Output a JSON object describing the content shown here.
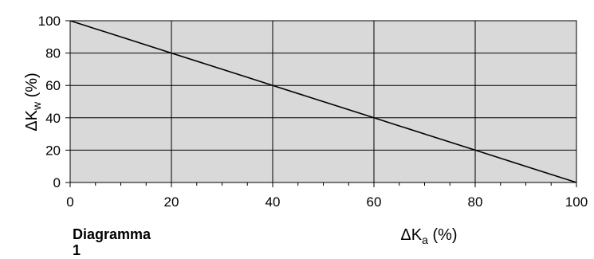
{
  "caption": {
    "line1": "Diagramma",
    "line2": "1"
  },
  "chart_data": {
    "type": "line",
    "x": [
      0,
      10,
      20,
      30,
      35,
      40,
      50,
      60,
      65,
      70,
      80,
      90,
      100
    ],
    "series": [
      {
        "values": [
          100,
          90,
          80,
          70,
          65,
          60,
          50,
          40,
          35,
          30,
          20,
          10,
          0
        ]
      }
    ],
    "xlim": [
      0,
      100
    ],
    "ylim": [
      0,
      100
    ],
    "x_major_ticks": [
      0,
      20,
      40,
      60,
      80,
      100
    ],
    "y_major_ticks": [
      0,
      20,
      40,
      60,
      80,
      100
    ],
    "x_tick_labels": [
      "0",
      "20",
      "40",
      "60",
      "80",
      "100"
    ],
    "y_tick_labels": [
      "0",
      "20",
      "40",
      "60",
      "80",
      "100"
    ],
    "xlabel": {
      "symbol": "ΔK",
      "subscript": "a",
      "unit": " (%)"
    },
    "ylabel": {
      "symbol": "ΔK",
      "subscript": "w",
      "unit": "  (%)"
    },
    "grid": true,
    "plot_background": "#d9d9d9",
    "line_color": "#000000"
  }
}
